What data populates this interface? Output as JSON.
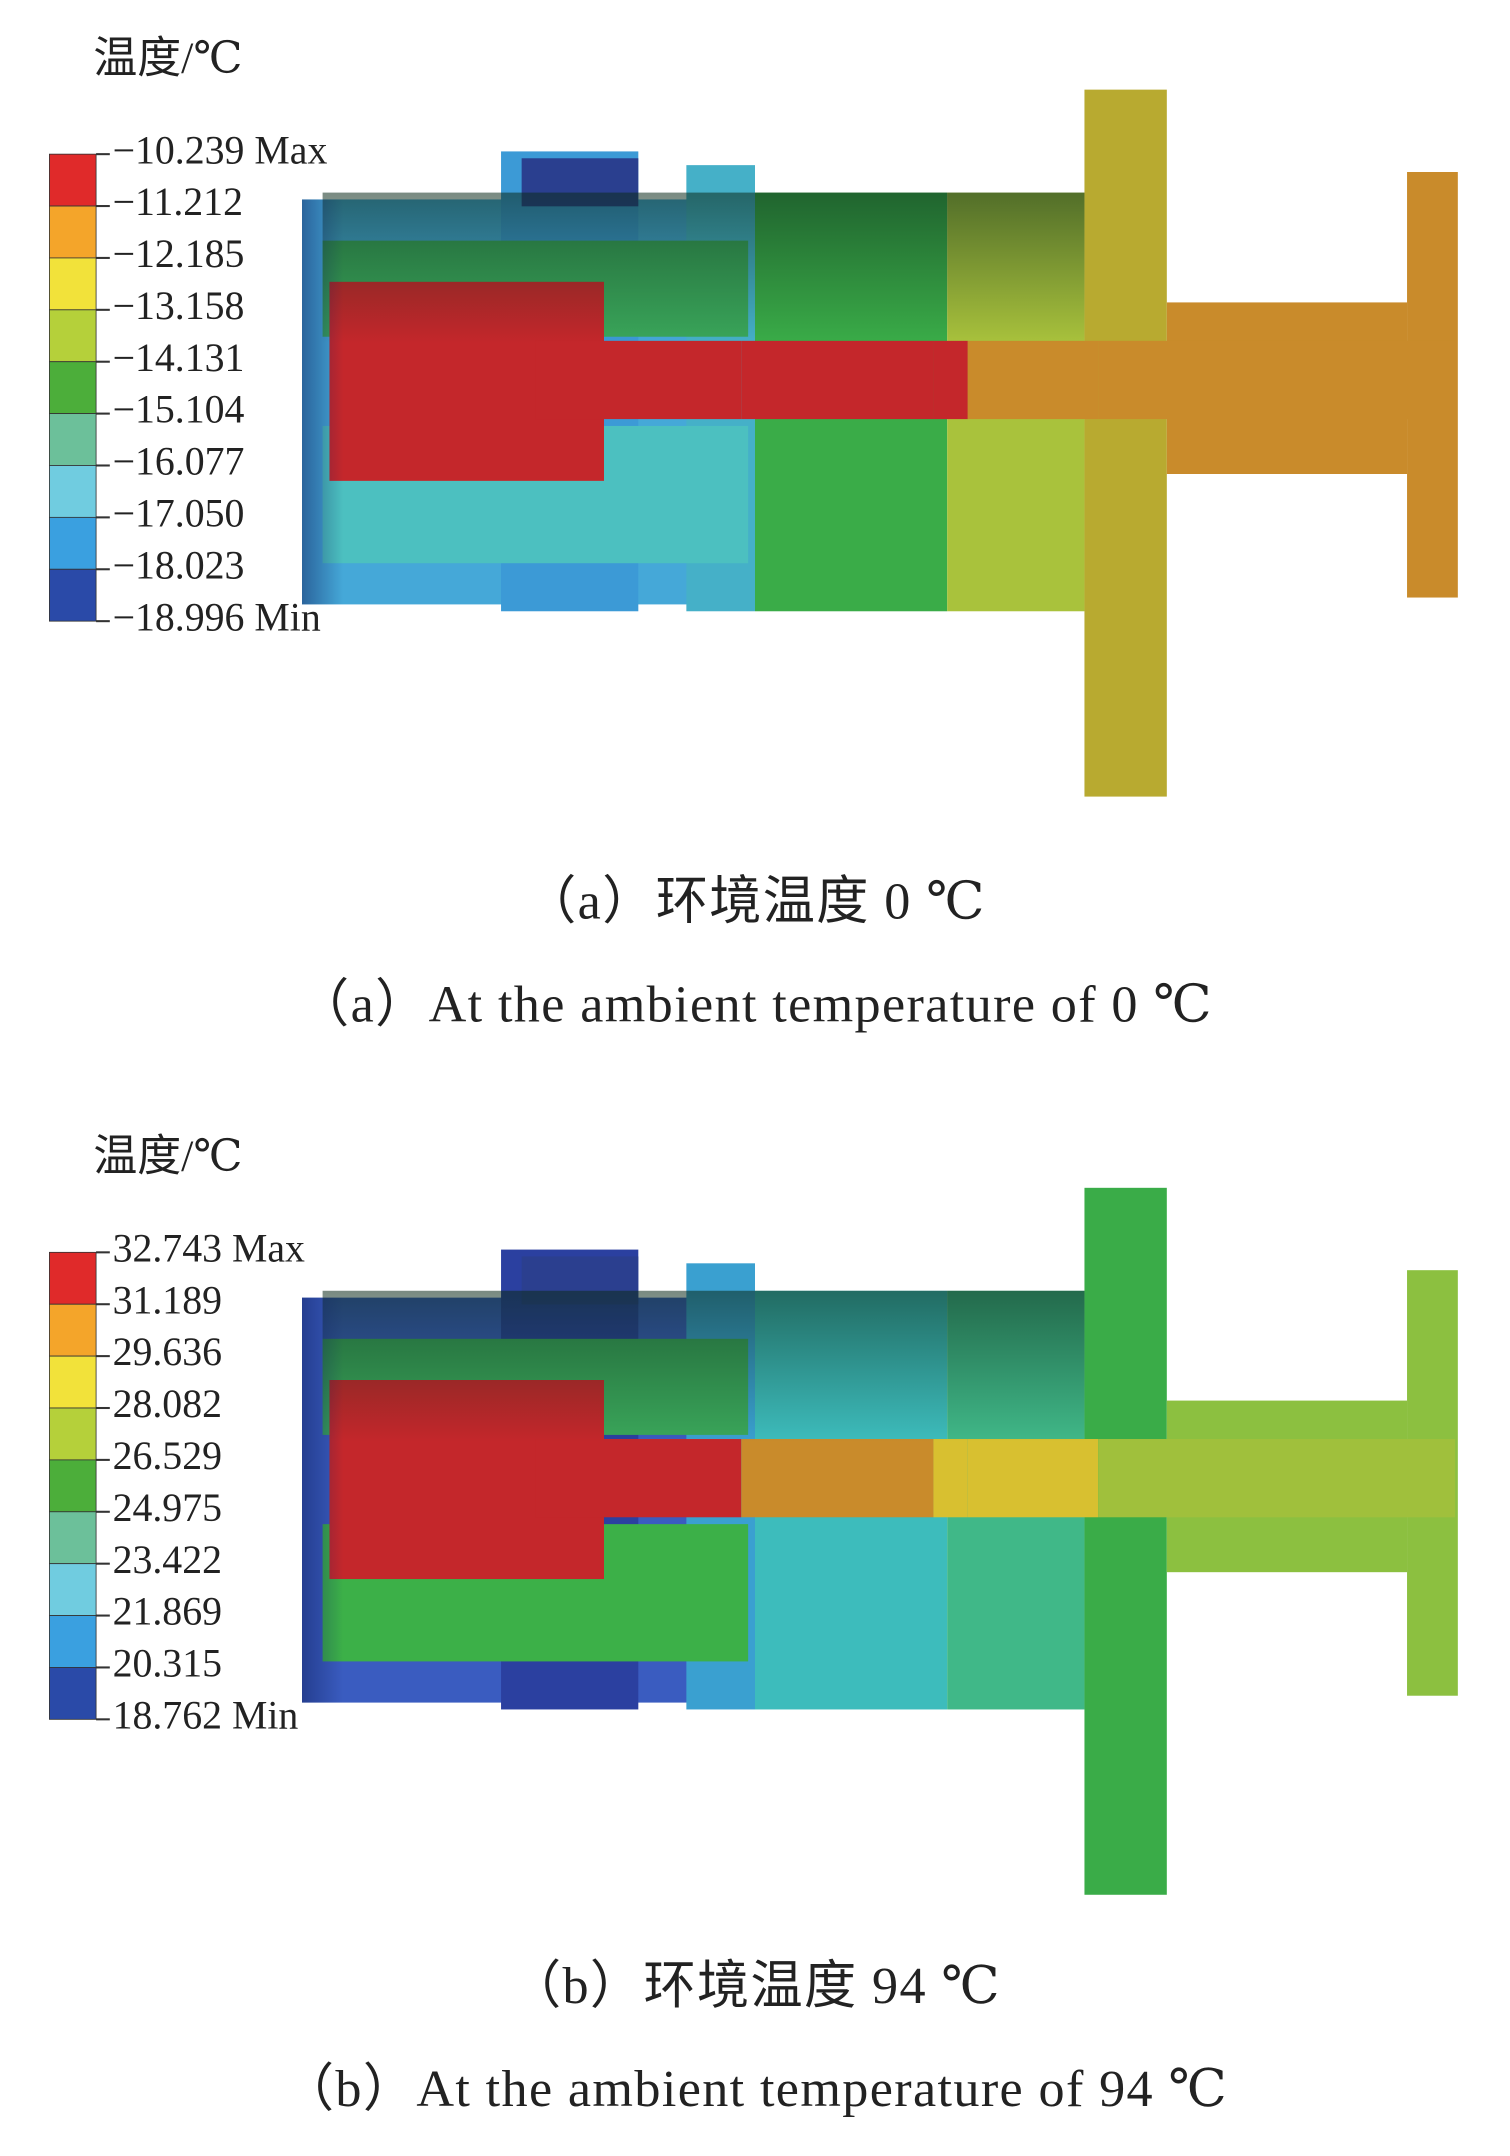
{
  "panels": [
    {
      "legend_title": "温度/℃",
      "legend": {
        "labels": [
          "−10.239 Max",
          "−11.212",
          "−12.185",
          "−13.158",
          "−14.131",
          "−15.104",
          "−16.077",
          "−17.050",
          "−18.023",
          "−18.996 Min"
        ]
      },
      "caption_zh": "（a）环境温度 0 ℃",
      "caption_en": "（a）At the ambient temperature of 0 ℃"
    },
    {
      "legend_title": "温度/℃",
      "legend": {
        "labels": [
          "32.743 Max",
          "31.189",
          "29.636",
          "28.082",
          "26.529",
          "24.975",
          "23.422",
          "21.869",
          "20.315",
          "18.762 Min"
        ]
      },
      "caption_zh": "（b）环境温度 94 ℃",
      "caption_en": "（b）At the ambient temperature of 94 ℃"
    }
  ]
}
